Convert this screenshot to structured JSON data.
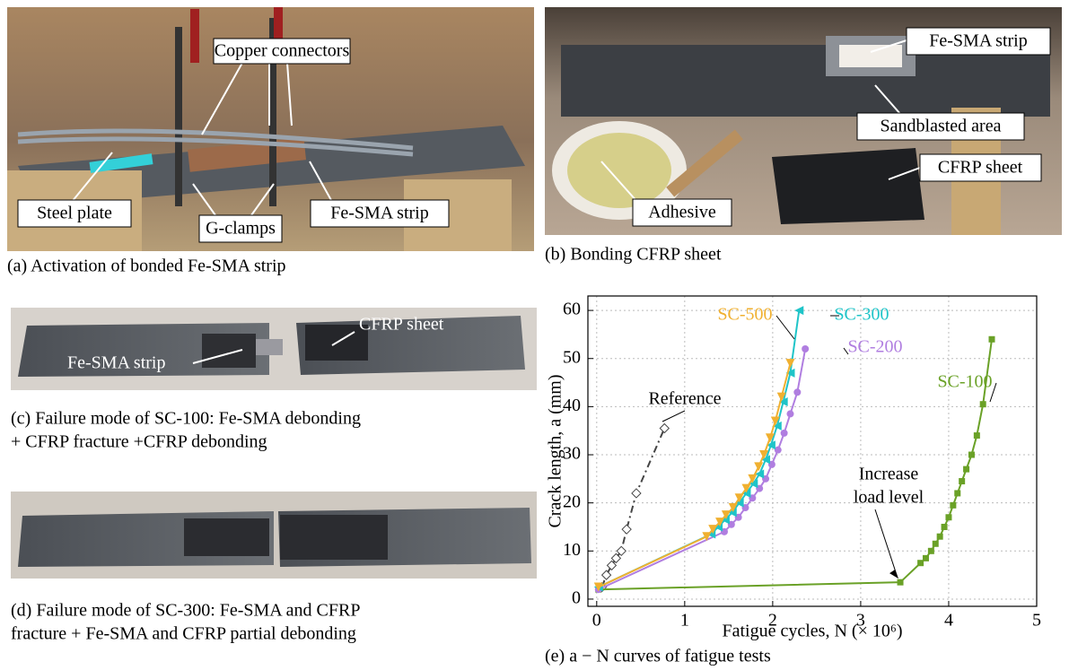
{
  "panels": [
    {
      "caption": "(a) Activation of bonded Fe-SMA strip",
      "labels": [
        "Copper connectors",
        "Steel plate",
        "G-clamps",
        "Fe-SMA strip"
      ]
    },
    {
      "caption": "(b) Bonding CFRP sheet",
      "labels": [
        "Fe-SMA strip",
        "Sandblasted area",
        "CFRP sheet",
        "Adhesive"
      ]
    },
    {
      "caption": [
        "(c) Failure mode of SC-100: Fe-SMA debonding",
        "+ CFRP fracture +CFRP debonding"
      ],
      "labels": [
        "Fe-SMA strip",
        "CFRP sheet"
      ]
    },
    {
      "caption": [
        "(d) Failure mode of SC-300: Fe-SMA and CFRP",
        "fracture + Fe-SMA and CFRP partial debonding"
      ]
    }
  ],
  "chart_data": {
    "type": "line",
    "caption": "(e) a − N curves of fatigue tests",
    "xlabel": "Fatigue cycles, N (× 10⁶)",
    "ylabel": "Crack length, a (mm)",
    "xlim": [
      -0.1,
      5
    ],
    "ylim": [
      -1.5,
      63
    ],
    "xticks": [
      0,
      1,
      2,
      3,
      4,
      5
    ],
    "yticks": [
      0,
      10,
      20,
      30,
      40,
      50,
      60
    ],
    "grid": true,
    "annotations": [
      "Increase",
      "load level"
    ],
    "series": [
      {
        "name": "Reference",
        "color": "#444444",
        "marker": "diamond",
        "linestyle": "dashdot",
        "x": [
          0.06,
          0.11,
          0.17,
          0.22,
          0.28,
          0.34,
          0.45,
          0.77
        ],
        "values": [
          2.5,
          5,
          7,
          8.5,
          10,
          14.5,
          22,
          35.5
        ]
      },
      {
        "name": "SC-100",
        "color": "#6aa127",
        "marker": "square",
        "linestyle": "solid",
        "x": [
          0.02,
          3.45,
          3.68,
          3.74,
          3.8,
          3.85,
          3.9,
          3.95,
          4.0,
          4.05,
          4.1,
          4.15,
          4.2,
          4.26,
          4.32,
          4.39,
          4.49
        ],
        "values": [
          2,
          3.5,
          7.5,
          8.5,
          10,
          11.5,
          13,
          15,
          17,
          19.5,
          22,
          24.5,
          27,
          30,
          34,
          40.5,
          54
        ]
      },
      {
        "name": "SC-200",
        "color": "#b07ee0",
        "marker": "circle",
        "linestyle": "solid",
        "x": [
          0.02,
          1.45,
          1.53,
          1.61,
          1.69,
          1.77,
          1.85,
          1.92,
          1.99,
          2.06,
          2.13,
          2.2,
          2.28,
          2.37
        ],
        "values": [
          2,
          14,
          15.5,
          17,
          19,
          21,
          23,
          25,
          28,
          31,
          34.5,
          38.5,
          43,
          52
        ]
      },
      {
        "name": "SC-300",
        "color": "#1fc4c8",
        "marker": "triangle-left",
        "linestyle": "solid",
        "x": [
          0.02,
          1.3,
          1.38,
          1.46,
          1.54,
          1.62,
          1.7,
          1.78,
          1.85,
          1.92,
          1.98,
          2.05,
          2.12,
          2.2,
          2.3
        ],
        "values": [
          2.5,
          13.5,
          15,
          16.5,
          18,
          20,
          22,
          24,
          26,
          29,
          32,
          36,
          41,
          47,
          60
        ]
      },
      {
        "name": "SC-500",
        "color": "#f0b030",
        "marker": "triangle-down",
        "linestyle": "solid",
        "x": [
          0.02,
          1.25,
          1.32,
          1.4,
          1.47,
          1.55,
          1.62,
          1.7,
          1.77,
          1.84,
          1.9,
          1.97,
          2.03,
          2.1,
          2.2
        ],
        "values": [
          2.5,
          13,
          14.5,
          16,
          17.5,
          19,
          21,
          23,
          25,
          27.5,
          30,
          33.5,
          37,
          42,
          49
        ]
      }
    ]
  }
}
